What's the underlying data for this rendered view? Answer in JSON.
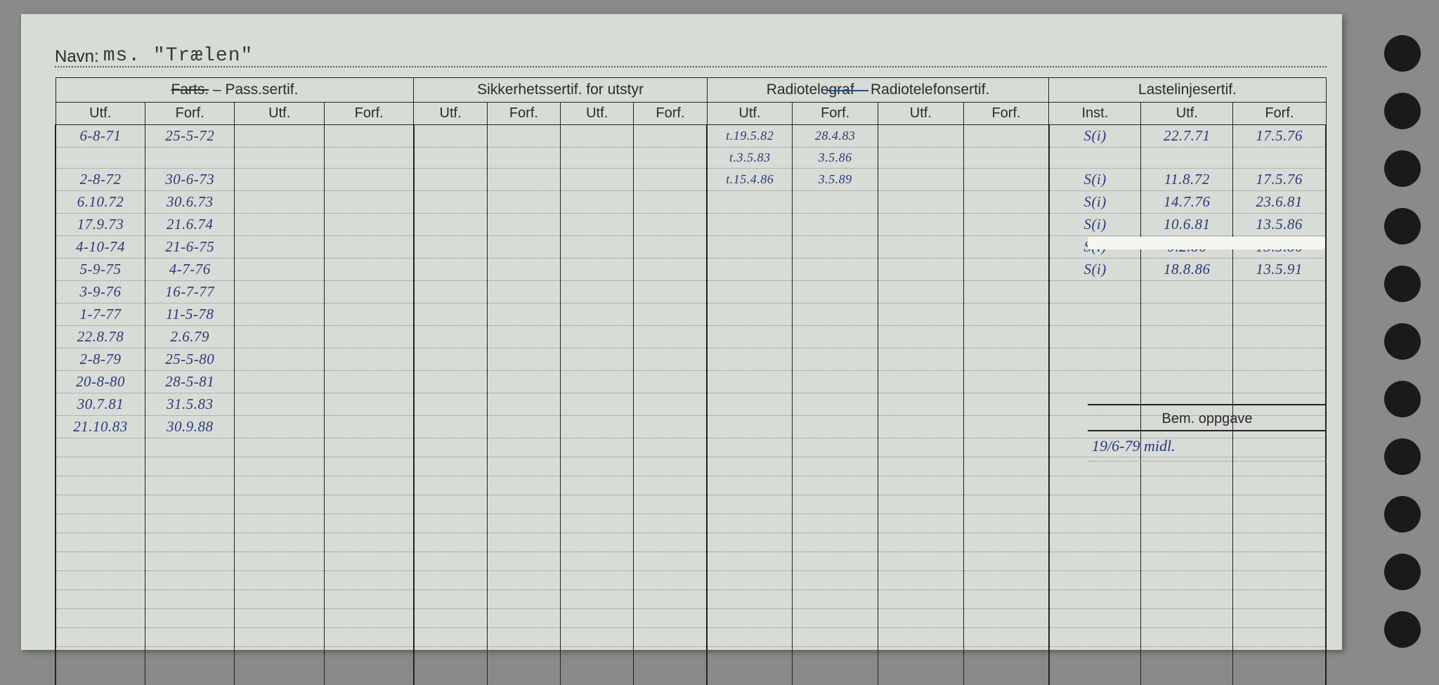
{
  "navn": {
    "label": "Navn:",
    "value": "ms. \"Trælen\""
  },
  "groups": [
    {
      "title_a": "Farts.",
      "title_b": " – Pass.sertif.",
      "cols": [
        "Utf.",
        "Forf.",
        "Utf.",
        "Forf."
      ]
    },
    {
      "title": "Sikkerhetssertif. for utstyr",
      "cols": [
        "Utf.",
        "Forf.",
        "Utf.",
        "Forf."
      ]
    },
    {
      "title_a": "Radiotelegraf",
      "title_b": " – Radiotelefonsertif.",
      "cols": [
        "Utf.",
        "Forf.",
        "Utf.",
        "Forf."
      ]
    },
    {
      "title": "Lastelinjesertif.",
      "cols": [
        "Inst.",
        "Utf.",
        "Forf."
      ]
    }
  ],
  "g1": [
    [
      "6-8-71",
      "25-5-72"
    ],
    [
      "",
      ""
    ],
    [
      "2-8-72",
      "30-6-73"
    ],
    [
      "6.10.72",
      "30.6.73"
    ],
    [
      "17.9.73",
      "21.6.74"
    ],
    [
      "4-10-74",
      "21-6-75"
    ],
    [
      "5-9-75",
      "4-7-76"
    ],
    [
      "3-9-76",
      "16-7-77"
    ],
    [
      "1-7-77",
      "11-5-78"
    ],
    [
      "22.8.78",
      "2.6.79"
    ],
    [
      "2-8-79",
      "25-5-80"
    ],
    [
      "20-8-80",
      "28-5-81"
    ],
    [
      "30.7.81",
      "31.5.83"
    ],
    [
      "21.10.83",
      "30.9.88"
    ]
  ],
  "g3": [
    [
      "t.19.5.82",
      "28.4.83"
    ],
    [
      "t.3.5.83",
      "3.5.86"
    ],
    [
      "t.15.4.86",
      "3.5.89"
    ]
  ],
  "g4": [
    [
      "S(i)",
      "22.7.71",
      "17.5.76"
    ],
    [
      "S(i)",
      "11.8.72",
      "17.5.76"
    ],
    [
      "S(i)",
      "14.7.76",
      "23.6.81"
    ],
    [
      "S(i)",
      "10.6.81",
      "13.5.86"
    ],
    [
      "S(i)",
      "9.2.86",
      "13.5.86"
    ],
    [
      "S(i)",
      "18.8.86",
      "13.5.91"
    ]
  ],
  "bem": {
    "label": "Bem. oppgave",
    "value": "19/6-79 midl."
  },
  "colors": {
    "ink": "#2a3a7a",
    "print": "#2a2a2a",
    "paper": "#d8dcd7",
    "bg": "#8a8a88"
  },
  "blank_rows_after": 13
}
